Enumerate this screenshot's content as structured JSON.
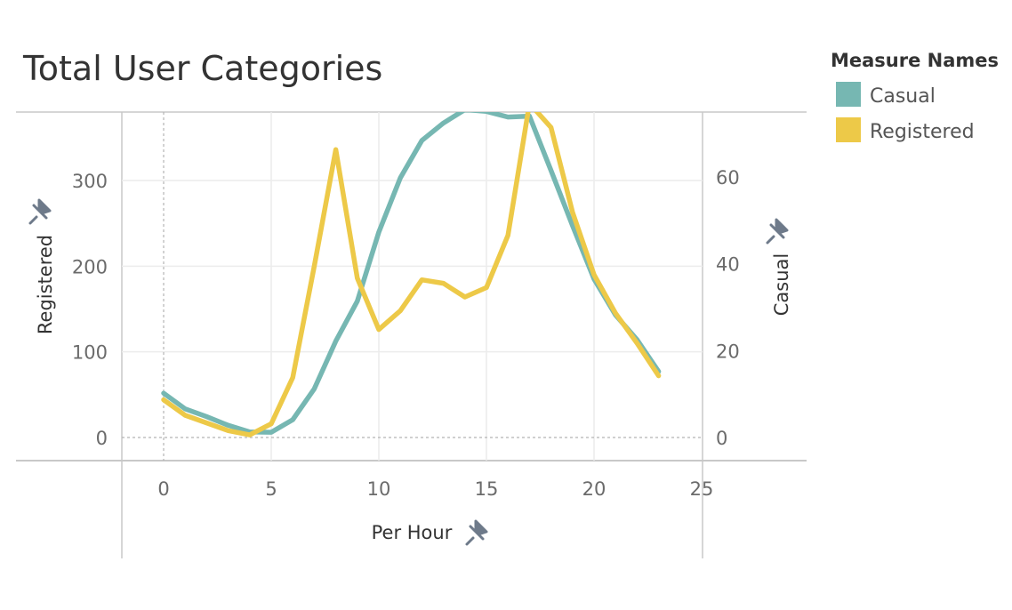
{
  "chart_data": {
    "type": "line",
    "title": "Total User Categories",
    "xlabel": "Per Hour",
    "ylabel_left": "Registered",
    "ylabel_right": "Casual",
    "xlim": [
      -2,
      25
    ],
    "ylim_left": [
      0,
      380
    ],
    "ylim_right": [
      0,
      74
    ],
    "x_ticks": [
      "0",
      "5",
      "10",
      "15",
      "20",
      "25"
    ],
    "y_left_ticks": [
      "0",
      "100",
      "200",
      "300"
    ],
    "y_right_ticks": [
      "0",
      "20",
      "40",
      "60"
    ],
    "grid": true,
    "legend": {
      "title": "Measure Names",
      "placement": "right",
      "entries": [
        "Casual",
        "Registered"
      ]
    },
    "x": [
      0,
      1,
      2,
      3,
      4,
      5,
      6,
      7,
      8,
      9,
      10,
      11,
      12,
      13,
      14,
      15,
      16,
      17,
      18,
      19,
      20,
      21,
      22,
      23
    ],
    "series": [
      {
        "name": "Casual",
        "axis": "right",
        "color": "#76b7b2",
        "values": [
          10.2,
          6.6,
          4.8,
          2.8,
          1.3,
          1.2,
          4.1,
          11.2,
          22.2,
          31.4,
          47.3,
          59.8,
          68.4,
          72.4,
          75.5,
          75.1,
          73.8,
          74.0,
          61.5,
          48.8,
          36.5,
          28.2,
          22.5,
          15.2
        ]
      },
      {
        "name": "Registered",
        "axis": "left",
        "color": "#edc948",
        "values": [
          44,
          26,
          17,
          8,
          3,
          16,
          70,
          200,
          336,
          186,
          126,
          148,
          184,
          180,
          164,
          175,
          236,
          390,
          362,
          263,
          190,
          145,
          110,
          72
        ]
      }
    ]
  }
}
